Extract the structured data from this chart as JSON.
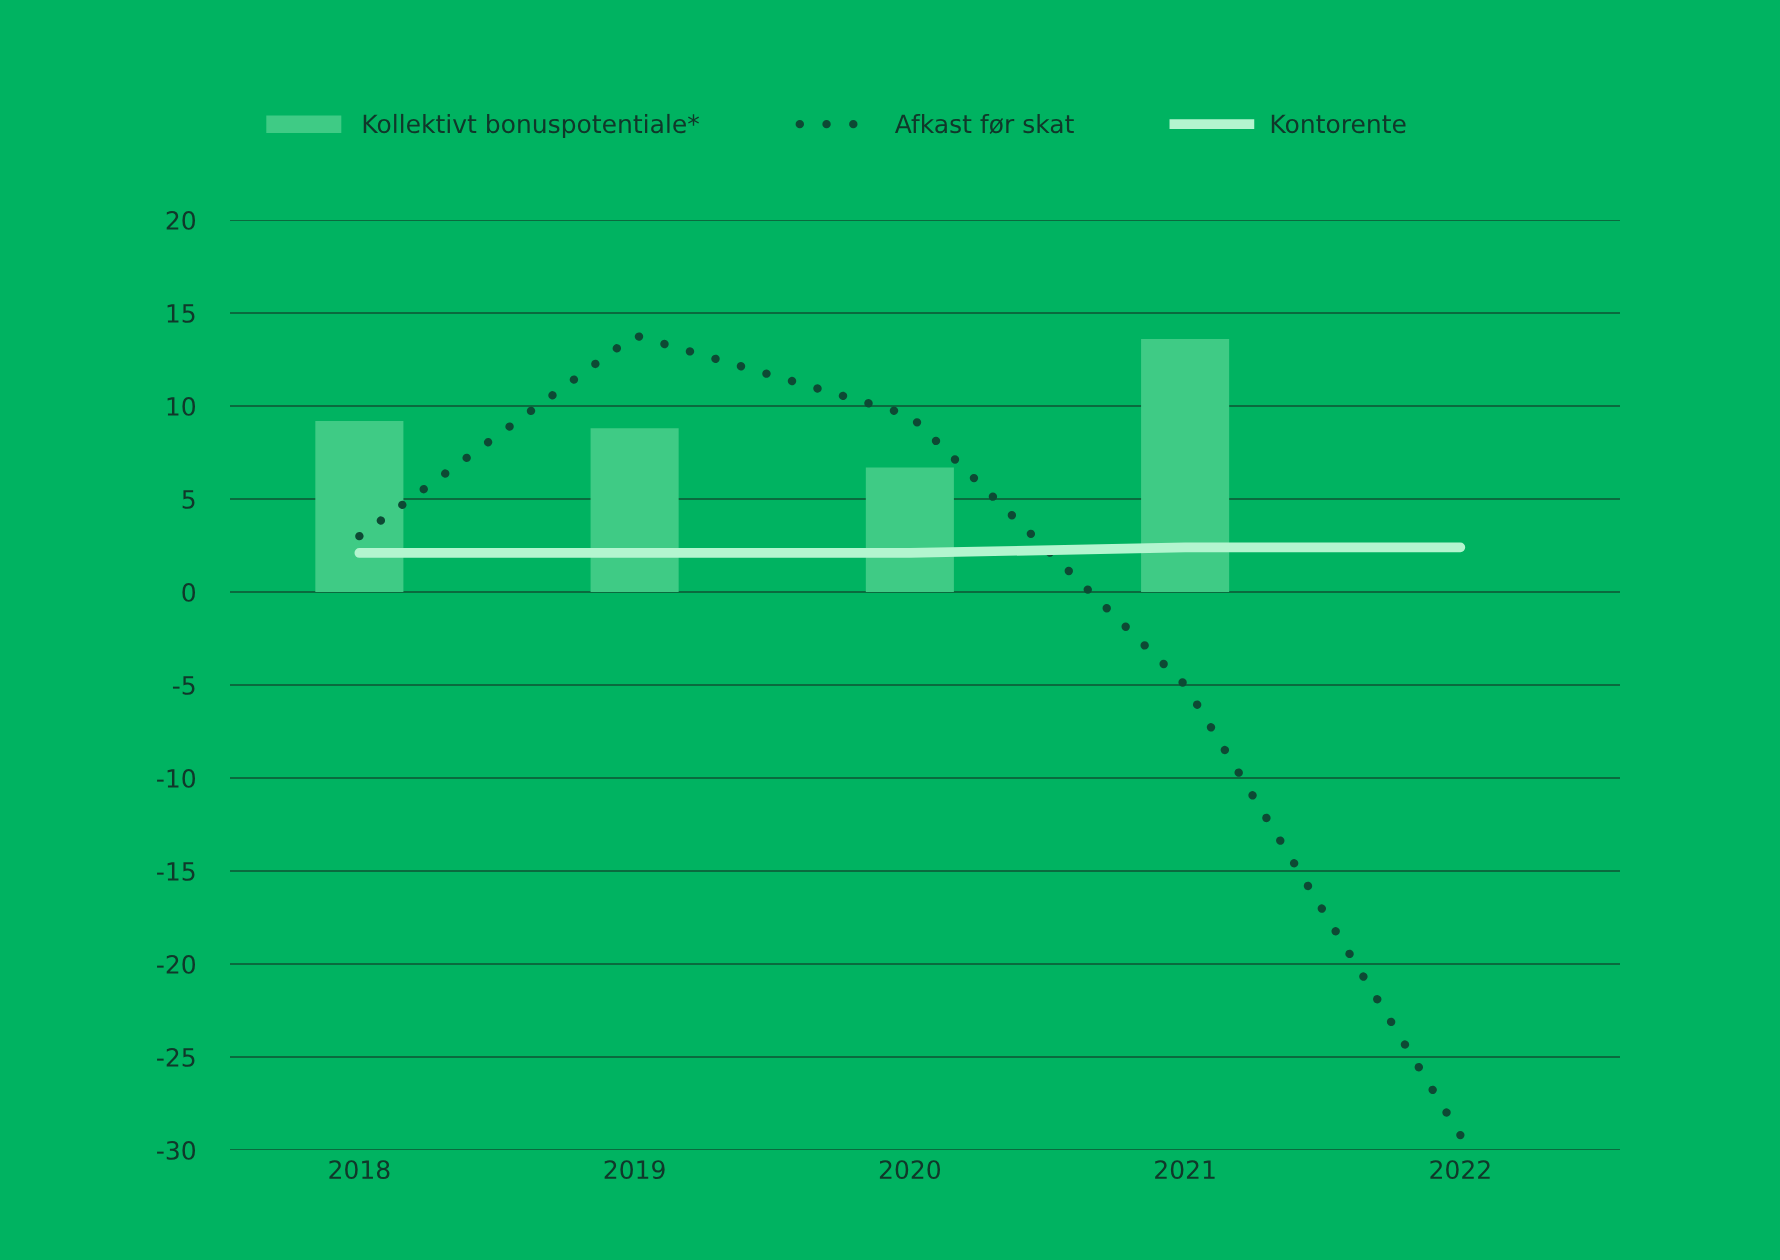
{
  "chart_data": {
    "type": "bar",
    "categories": [
      "2018",
      "2019",
      "2020",
      "2021",
      "2022"
    ],
    "series": [
      {
        "name": "Kollektivt bonuspotentiale*",
        "color": "#3fcb85",
        "values": [
          9.2,
          8.8,
          6.7,
          13.6,
          null
        ]
      },
      {
        "name": "Afkast før skat",
        "type": "line",
        "color": "#0d4a34",
        "line_style": "dotted",
        "values": [
          3.0,
          13.8,
          9.5,
          -5.0,
          -29.2
        ]
      },
      {
        "name": "Kontorente",
        "type": "line",
        "color": "#b3f5cf",
        "line_style": "solid",
        "values": [
          2.1,
          2.1,
          2.1,
          2.4,
          2.4
        ]
      }
    ],
    "ylim": [
      -30,
      20
    ],
    "yticks": [
      -30,
      -25,
      -20,
      -15,
      -10,
      -5,
      0,
      5,
      10,
      15,
      20
    ],
    "grid": "y",
    "legend": "top",
    "marker": "none"
  }
}
